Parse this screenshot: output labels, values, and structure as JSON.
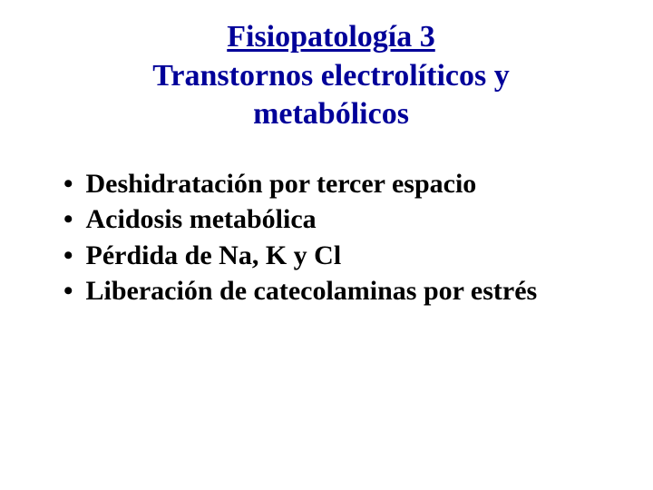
{
  "title": {
    "line1": "Fisiopatología 3",
    "line2": "Transtornos electrolíticos y metabólicos",
    "color": "#000099",
    "fontsize": 34
  },
  "bullets": {
    "items": [
      "Deshidratación por tercer espacio",
      "Acidosis metabólica",
      "Pérdida de Na, K y Cl",
      "Liberación de catecolaminas por estrés"
    ],
    "dot": "•",
    "text_color": "#000000",
    "fontsize": 30
  },
  "background_color": "#ffffff"
}
